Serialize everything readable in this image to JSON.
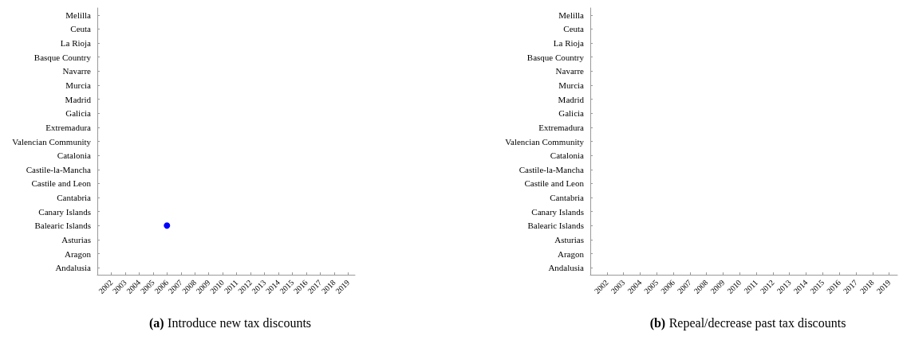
{
  "chart_data": [
    {
      "type": "scatter",
      "orientation": "horizontal",
      "title": "(a) Introduce new tax discounts",
      "categories": [
        "Melilla",
        "Ceuta",
        "La Rioja",
        "Basque Country",
        "Navarre",
        "Murcia",
        "Madrid",
        "Galicia",
        "Extremadura",
        "Valencian Community",
        "Catalonia",
        "Castile-la-Mancha",
        "Castile and Leon",
        "Cantabria",
        "Canary Islands",
        "Balearic Islands",
        "Asturias",
        "Aragon",
        "Andalusia"
      ],
      "series": [
        {
          "color": "#0000ff",
          "values": [
            null,
            null,
            null,
            null,
            null,
            null,
            null,
            null,
            null,
            null,
            null,
            null,
            null,
            null,
            null,
            2006,
            null,
            null,
            null
          ]
        }
      ],
      "xlim": [
        2001,
        2019.5
      ],
      "xticks": [
        2002,
        2003,
        2004,
        2005,
        2006,
        2007,
        2008,
        2009,
        2010,
        2011,
        2012,
        2013,
        2014,
        2015,
        2016,
        2017,
        2018,
        2019
      ],
      "marker": "circle",
      "grid": false
    },
    {
      "type": "scatter",
      "orientation": "horizontal",
      "title": "(b) Repeal/decrease past tax discounts",
      "categories": [
        "Melilla",
        "Ceuta",
        "La Rioja",
        "Basque Country",
        "Navarre",
        "Murcia",
        "Madrid",
        "Galicia",
        "Extremadura",
        "Valencian Community",
        "Catalonia",
        "Castile-la-Mancha",
        "Castile and Leon",
        "Cantabria",
        "Canary Islands",
        "Balearic Islands",
        "Asturias",
        "Aragon",
        "Andalusia"
      ],
      "series": [
        {
          "color": "#0000ff",
          "values": [
            null,
            null,
            null,
            null,
            null,
            null,
            null,
            null,
            null,
            null,
            null,
            null,
            null,
            null,
            null,
            null,
            null,
            null,
            null
          ]
        }
      ],
      "xlim": [
        2001,
        2019.5
      ],
      "xticks": [
        2002,
        2003,
        2004,
        2005,
        2006,
        2007,
        2008,
        2009,
        2010,
        2011,
        2012,
        2013,
        2014,
        2015,
        2016,
        2017,
        2018,
        2019
      ],
      "marker": "circle",
      "grid": false
    }
  ]
}
